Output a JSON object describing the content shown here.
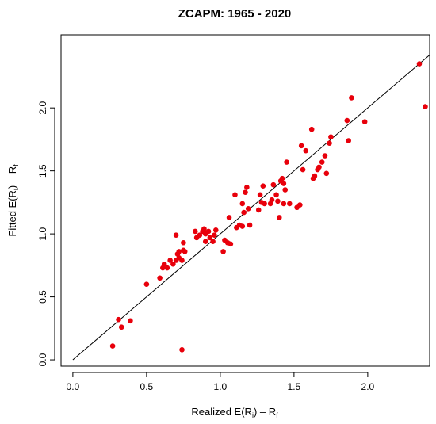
{
  "chart_data": {
    "type": "scatter",
    "title": "ZCAPM: 1965 - 2020",
    "xlabel": {
      "main": "Realized E(R",
      "sub_i": "i",
      "mid": ") – R",
      "sub_f": "f"
    },
    "ylabel": {
      "main": "Fitted E(R",
      "sub_i": "i",
      "mid": ") – R",
      "sub_f": "f"
    },
    "xlim": [
      -0.08,
      2.42
    ],
    "ylim": [
      -0.05,
      2.58
    ],
    "xticks": [
      0.0,
      0.5,
      1.0,
      1.5,
      2.0
    ],
    "xtick_labels": [
      "0.0",
      "0.5",
      "1.0",
      "1.5",
      "2.0"
    ],
    "yticks": [
      0.0,
      0.5,
      1.0,
      1.5,
      2.0
    ],
    "ytick_labels": [
      "0.0",
      "0.5",
      "1.0",
      "1.5",
      "2.0"
    ],
    "reference_line": {
      "type": "45-degree",
      "from": [
        0,
        0
      ],
      "to": [
        2.42,
        2.42
      ]
    },
    "point_color": "#e8000b",
    "line_color": "#000000",
    "grid": false,
    "points": [
      {
        "x": 0.27,
        "y": 0.11
      },
      {
        "x": 0.31,
        "y": 0.32
      },
      {
        "x": 0.33,
        "y": 0.26
      },
      {
        "x": 0.39,
        "y": 0.31
      },
      {
        "x": 0.5,
        "y": 0.6
      },
      {
        "x": 0.59,
        "y": 0.65
      },
      {
        "x": 0.61,
        "y": 0.73
      },
      {
        "x": 0.62,
        "y": 0.76
      },
      {
        "x": 0.64,
        "y": 0.73
      },
      {
        "x": 0.66,
        "y": 0.79
      },
      {
        "x": 0.68,
        "y": 0.76
      },
      {
        "x": 0.7,
        "y": 0.79
      },
      {
        "x": 0.7,
        "y": 0.99
      },
      {
        "x": 0.71,
        "y": 0.84
      },
      {
        "x": 0.72,
        "y": 0.86
      },
      {
        "x": 0.72,
        "y": 0.81
      },
      {
        "x": 0.74,
        "y": 0.79
      },
      {
        "x": 0.75,
        "y": 0.87
      },
      {
        "x": 0.75,
        "y": 0.93
      },
      {
        "x": 0.74,
        "y": 0.08
      },
      {
        "x": 0.76,
        "y": 0.86
      },
      {
        "x": 0.83,
        "y": 1.02
      },
      {
        "x": 0.84,
        "y": 0.97
      },
      {
        "x": 0.86,
        "y": 0.99
      },
      {
        "x": 0.88,
        "y": 1.02
      },
      {
        "x": 0.89,
        "y": 1.04
      },
      {
        "x": 0.9,
        "y": 1.0
      },
      {
        "x": 0.9,
        "y": 0.94
      },
      {
        "x": 0.92,
        "y": 1.02
      },
      {
        "x": 0.93,
        "y": 0.97
      },
      {
        "x": 0.95,
        "y": 0.94
      },
      {
        "x": 0.96,
        "y": 0.99
      },
      {
        "x": 0.97,
        "y": 1.03
      },
      {
        "x": 1.02,
        "y": 0.86
      },
      {
        "x": 1.03,
        "y": 0.95
      },
      {
        "x": 1.05,
        "y": 0.93
      },
      {
        "x": 1.06,
        "y": 1.13
      },
      {
        "x": 1.07,
        "y": 0.92
      },
      {
        "x": 1.1,
        "y": 1.31
      },
      {
        "x": 1.11,
        "y": 1.05
      },
      {
        "x": 1.13,
        "y": 1.07
      },
      {
        "x": 1.15,
        "y": 1.06
      },
      {
        "x": 1.15,
        "y": 1.24
      },
      {
        "x": 1.16,
        "y": 1.17
      },
      {
        "x": 1.17,
        "y": 1.33
      },
      {
        "x": 1.18,
        "y": 1.37
      },
      {
        "x": 1.19,
        "y": 1.2
      },
      {
        "x": 1.2,
        "y": 1.07
      },
      {
        "x": 1.26,
        "y": 1.19
      },
      {
        "x": 1.27,
        "y": 1.31
      },
      {
        "x": 1.28,
        "y": 1.25
      },
      {
        "x": 1.29,
        "y": 1.38
      },
      {
        "x": 1.3,
        "y": 1.24
      },
      {
        "x": 1.34,
        "y": 1.24
      },
      {
        "x": 1.35,
        "y": 1.27
      },
      {
        "x": 1.36,
        "y": 1.39
      },
      {
        "x": 1.38,
        "y": 1.31
      },
      {
        "x": 1.39,
        "y": 1.26
      },
      {
        "x": 1.4,
        "y": 1.13
      },
      {
        "x": 1.41,
        "y": 1.42
      },
      {
        "x": 1.42,
        "y": 1.44
      },
      {
        "x": 1.43,
        "y": 1.4
      },
      {
        "x": 1.43,
        "y": 1.24
      },
      {
        "x": 1.44,
        "y": 1.35
      },
      {
        "x": 1.45,
        "y": 1.57
      },
      {
        "x": 1.47,
        "y": 1.24
      },
      {
        "x": 1.52,
        "y": 1.21
      },
      {
        "x": 1.54,
        "y": 1.23
      },
      {
        "x": 1.55,
        "y": 1.7
      },
      {
        "x": 1.56,
        "y": 1.51
      },
      {
        "x": 1.58,
        "y": 1.66
      },
      {
        "x": 1.62,
        "y": 1.83
      },
      {
        "x": 1.63,
        "y": 1.44
      },
      {
        "x": 1.64,
        "y": 1.46
      },
      {
        "x": 1.66,
        "y": 1.51
      },
      {
        "x": 1.67,
        "y": 1.53
      },
      {
        "x": 1.69,
        "y": 1.57
      },
      {
        "x": 1.71,
        "y": 1.62
      },
      {
        "x": 1.72,
        "y": 1.48
      },
      {
        "x": 1.74,
        "y": 1.72
      },
      {
        "x": 1.75,
        "y": 1.77
      },
      {
        "x": 1.86,
        "y": 1.9
      },
      {
        "x": 1.87,
        "y": 1.74
      },
      {
        "x": 1.89,
        "y": 2.08
      },
      {
        "x": 1.98,
        "y": 1.89
      },
      {
        "x": 2.35,
        "y": 2.35
      },
      {
        "x": 2.39,
        "y": 2.01
      }
    ]
  }
}
